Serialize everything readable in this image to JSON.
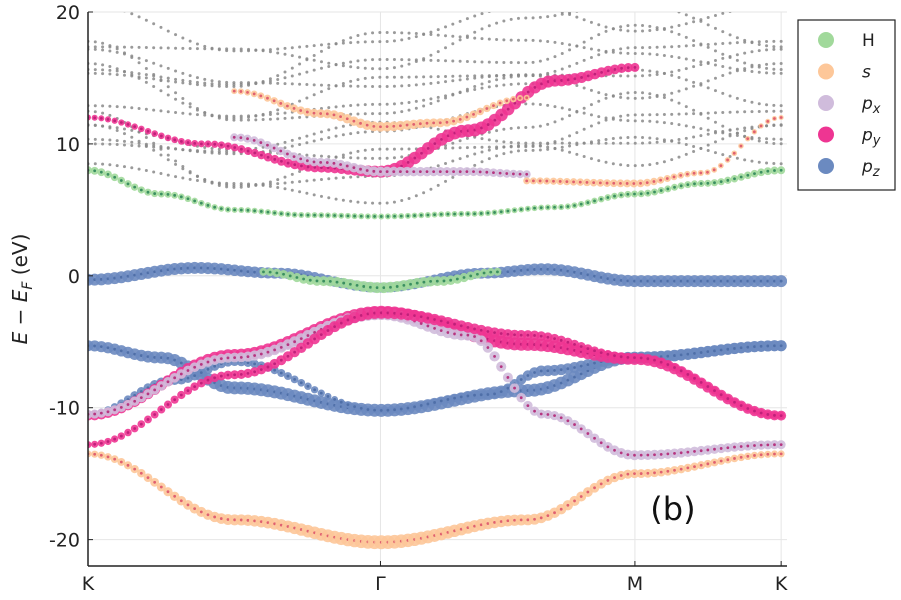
{
  "chart_data": {
    "type": "scatter",
    "title": "",
    "xlabel": "",
    "ylabel_parts": [
      "E",
      "−",
      "E",
      "F",
      "(eV)"
    ],
    "ylim": [
      -22,
      20
    ],
    "yticks": [
      20,
      10,
      0,
      -10,
      -20
    ],
    "ytick_labels": [
      "20",
      "10",
      "0",
      "-10",
      "-20"
    ],
    "xlim": [
      0,
      2.39
    ],
    "xticks": [
      0,
      1.0,
      1.87,
      2.37
    ],
    "xtick_labels": [
      "K",
      "Γ",
      "M",
      "K"
    ],
    "annotation": "(b)",
    "grid": true,
    "legend_position": "top-right outside",
    "legend": [
      {
        "key": "H",
        "label": "H",
        "color": "#a1d99b"
      },
      {
        "key": "s",
        "label": "s",
        "color": "#fdc799"
      },
      {
        "key": "px",
        "label": "p",
        "sub": "x",
        "color": "#d0bcdc"
      },
      {
        "key": "py",
        "label": "p",
        "sub": "y",
        "color": "#ee3592"
      },
      {
        "key": "pz",
        "label": "p",
        "sub": "z",
        "color": "#6b8ac0"
      }
    ],
    "band_color": "#888888",
    "series": [
      {
        "name": "s-low",
        "orbital": "s",
        "core": "#e06070",
        "x": [
          0,
          0.5,
          1.0,
          1.5,
          1.87,
          2.37
        ],
        "y": [
          -13.5,
          -18.5,
          -20.2,
          -18.5,
          -15.0,
          -13.5
        ],
        "size": [
          0.3,
          0.7,
          1.0,
          0.7,
          0.5,
          0.3
        ]
      },
      {
        "name": "pz-band-a",
        "orbital": "pz",
        "core": "#4f6fa8",
        "x": [
          0,
          0.25,
          0.5,
          1.0,
          1.5,
          1.87,
          2.37
        ],
        "y": [
          -5.3,
          -6.2,
          -8.5,
          -10.2,
          -8.7,
          -6.2,
          -5.3
        ],
        "size": [
          0.7,
          0.8,
          0.9,
          0.9,
          0.9,
          0.8,
          0.7
        ]
      },
      {
        "name": "pz-band-b",
        "orbital": "pz",
        "core": "#4f6fa8",
        "x": [
          0,
          0.3,
          0.5,
          1.0,
          1.37,
          1.56,
          1.87,
          2.37
        ],
        "y": [
          -10.5,
          -7.9,
          -6.5,
          -10.2,
          -9.0,
          -7.2,
          -6.2,
          -5.3
        ],
        "size": [
          0.3,
          0.6,
          0.5,
          0.2,
          0.5,
          0.7,
          0.7,
          0.7
        ]
      },
      {
        "name": "py-band-a",
        "orbital": "py",
        "core": "#c0207a",
        "x": [
          0,
          0.5,
          1.0,
          1.5,
          1.87,
          2.37
        ],
        "y": [
          -10.6,
          -6.0,
          -2.8,
          -5.2,
          -6.3,
          -10.6
        ],
        "size": [
          0.6,
          0.8,
          1.0,
          0.9,
          0.8,
          0.6
        ]
      },
      {
        "name": "px-band-a",
        "orbital": "px",
        "core": "#b63580",
        "x": [
          0,
          0.5,
          1.0,
          1.3,
          1.56,
          1.87,
          2.37
        ],
        "y": [
          -10.5,
          -6.2,
          -2.9,
          -4.5,
          -10.5,
          -13.6,
          -12.8
        ],
        "size": [
          0.5,
          0.6,
          0.8,
          0.7,
          0.5,
          0.6,
          0.5
        ]
      },
      {
        "name": "py-band-b",
        "orbital": "py",
        "core": "#c0207a",
        "x": [
          0,
          0.5,
          1.0,
          1.5,
          1.87,
          2.37
        ],
        "y": [
          -12.8,
          -7.5,
          -2.8,
          -4.5,
          -6.2,
          -10.6
        ],
        "size": [
          0.3,
          0.5,
          0.8,
          0.6,
          0.4,
          0.3
        ]
      },
      {
        "name": "pz-flat",
        "orbital": "pz",
        "core": "#4f6fa8",
        "x": [
          0,
          0.37,
          0.65,
          1.0,
          1.35,
          1.56,
          1.87,
          2.37
        ],
        "y": [
          -0.3,
          0.6,
          0.2,
          -0.9,
          0.2,
          0.5,
          -0.4,
          -0.4
        ],
        "size": [
          0.8,
          0.8,
          0.7,
          0.6,
          0.7,
          0.8,
          0.8,
          0.8
        ]
      },
      {
        "name": "H-flat",
        "orbital": "H",
        "core": "#3a8f60",
        "x": [
          0.6,
          0.8,
          1.0,
          1.2,
          1.4
        ],
        "y": [
          0.3,
          -0.4,
          -0.9,
          -0.4,
          0.3
        ],
        "size": [
          0.4,
          0.6,
          0.7,
          0.6,
          0.4
        ]
      },
      {
        "name": "H-upper",
        "orbital": "H",
        "core": "#3a8f60",
        "x": [
          0,
          0.25,
          0.5,
          0.75,
          1.0,
          1.3,
          1.6,
          1.87,
          2.1,
          2.37
        ],
        "y": [
          8.0,
          6.2,
          5.0,
          4.6,
          4.5,
          4.7,
          5.2,
          6.2,
          7.0,
          8.0
        ],
        "size": [
          0.4,
          0.3,
          0.2,
          0.2,
          0.2,
          0.2,
          0.2,
          0.3,
          0.3,
          0.4
        ]
      },
      {
        "name": "py-upper",
        "orbital": "py",
        "core": "#c0207a",
        "x": [
          0,
          0.4,
          0.8,
          1.0,
          1.3,
          1.6,
          1.87
        ],
        "y": [
          12.0,
          10.0,
          8.2,
          7.9,
          11.0,
          14.8,
          15.8
        ],
        "size": [
          0.2,
          0.3,
          0.6,
          0.8,
          0.9,
          0.8,
          0.5
        ]
      },
      {
        "name": "px-upper",
        "orbital": "px",
        "core": "#b63580",
        "x": [
          0.5,
          0.8,
          1.0,
          1.3,
          1.5
        ],
        "y": [
          10.5,
          8.6,
          7.9,
          7.9,
          7.7
        ],
        "size": [
          0.4,
          0.5,
          0.6,
          0.5,
          0.4
        ]
      },
      {
        "name": "s-upper",
        "orbital": "s",
        "core": "#e06070",
        "x": [
          0.5,
          0.8,
          1.0,
          1.2,
          1.5
        ],
        "y": [
          14.0,
          12.3,
          11.3,
          11.6,
          13.5
        ],
        "size": [
          0.2,
          0.5,
          0.6,
          0.5,
          0.2
        ]
      },
      {
        "name": "s-m",
        "orbital": "s",
        "core": "#e06070",
        "x": [
          1.5,
          1.87,
          2.1,
          2.37
        ],
        "y": [
          7.2,
          7.0,
          7.8,
          12.0
        ],
        "size": [
          0.3,
          0.4,
          0.2,
          0.1
        ]
      }
    ]
  }
}
